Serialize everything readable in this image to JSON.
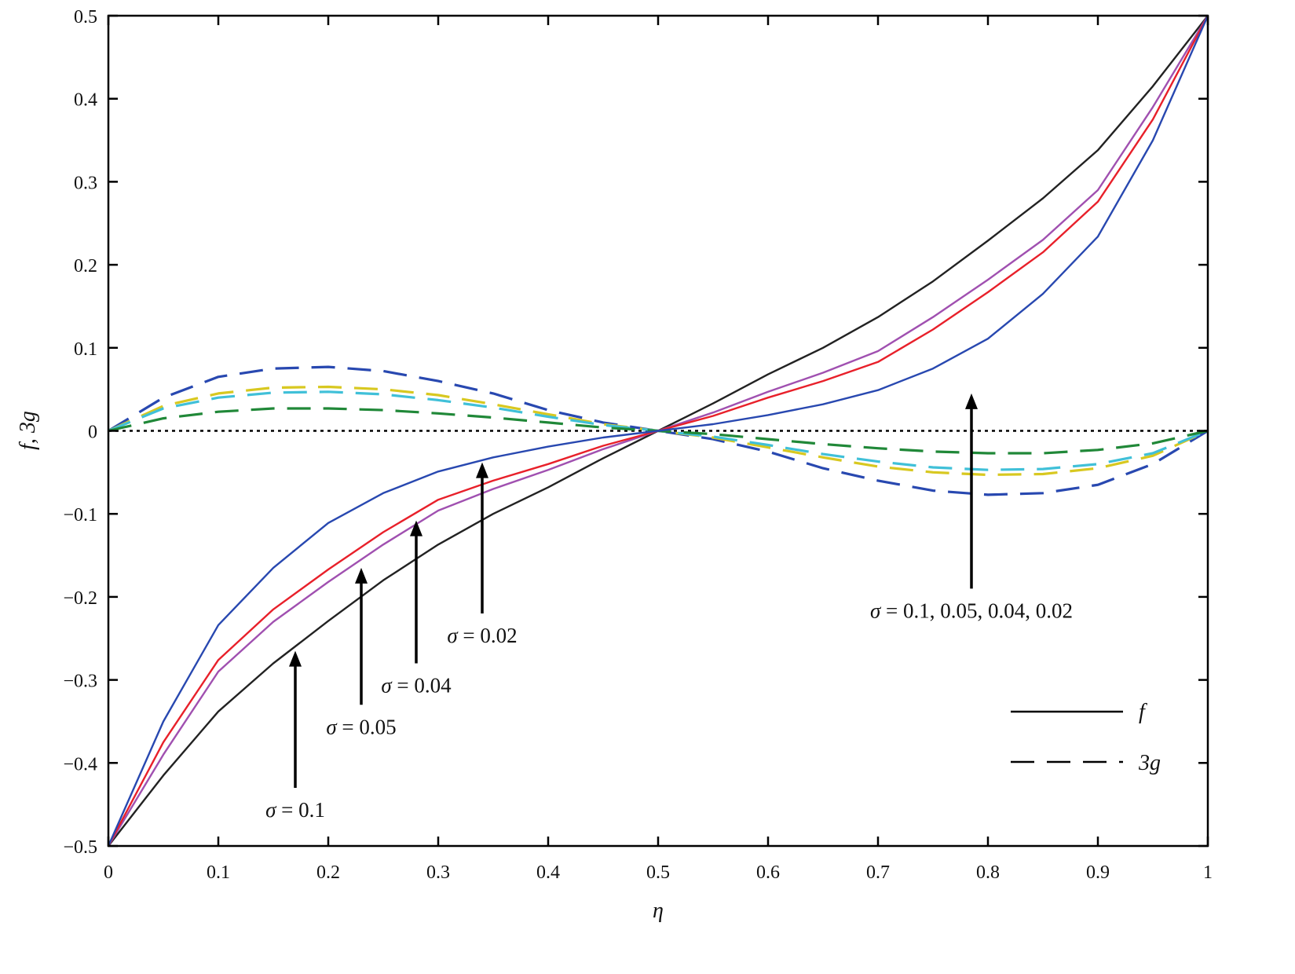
{
  "chart_data": {
    "type": "line",
    "xlabel": "η",
    "ylabel": "f, 3g",
    "xlim": [
      0,
      1
    ],
    "ylim": [
      -0.5,
      0.5
    ],
    "xticks": [
      "0",
      "0.1",
      "0.2",
      "0.3",
      "0.4",
      "0.5",
      "0.6",
      "0.7",
      "0.8",
      "0.9",
      "1"
    ],
    "yticks": [
      "0.5",
      "0.4",
      "0.3",
      "0.2",
      "0.1",
      "0",
      "−0.1",
      "−0.2",
      "−0.3",
      "−0.4",
      "−0.5"
    ],
    "grid": false,
    "x": [
      0,
      0.05,
      0.1,
      0.15,
      0.2,
      0.25,
      0.3,
      0.35,
      0.4,
      0.45,
      0.5,
      0.55,
      0.6,
      0.65,
      0.7,
      0.75,
      0.8,
      0.85,
      0.9,
      0.95,
      1
    ],
    "series": [
      {
        "group": "f",
        "color": "#222222",
        "dash": false,
        "values": [
          -0.5,
          -0.415,
          -0.338,
          -0.28,
          -0.229,
          -0.18,
          -0.137,
          -0.1,
          -0.068,
          -0.033,
          0,
          0.033,
          0.068,
          0.1,
          0.137,
          0.18,
          0.229,
          0.28,
          0.338,
          0.415,
          0.5
        ]
      },
      {
        "group": "f",
        "color": "#a050b0",
        "dash": false,
        "values": [
          -0.5,
          -0.39,
          -0.29,
          -0.23,
          -0.182,
          -0.137,
          -0.096,
          -0.07,
          -0.047,
          -0.022,
          0,
          0.022,
          0.047,
          0.07,
          0.096,
          0.137,
          0.182,
          0.23,
          0.29,
          0.39,
          0.5
        ]
      },
      {
        "group": "f",
        "color": "#e8202a",
        "dash": false,
        "values": [
          -0.5,
          -0.375,
          -0.276,
          -0.215,
          -0.167,
          -0.122,
          -0.083,
          -0.06,
          -0.04,
          -0.018,
          0,
          0.018,
          0.04,
          0.06,
          0.083,
          0.122,
          0.167,
          0.215,
          0.276,
          0.375,
          0.5
        ]
      },
      {
        "group": "f",
        "color": "#2848b0",
        "dash": false,
        "values": [
          -0.5,
          -0.35,
          -0.234,
          -0.165,
          -0.111,
          -0.075,
          -0.049,
          -0.032,
          -0.019,
          -0.008,
          0,
          0.008,
          0.019,
          0.032,
          0.049,
          0.075,
          0.111,
          0.165,
          0.234,
          0.35,
          0.5
        ]
      },
      {
        "group": "3g",
        "color": "#2848b0",
        "dash": true,
        "values": [
          0,
          0.04,
          0.065,
          0.075,
          0.077,
          0.072,
          0.06,
          0.045,
          0.025,
          0.01,
          0,
          -0.01,
          -0.025,
          -0.045,
          -0.06,
          -0.072,
          -0.077,
          -0.075,
          -0.065,
          -0.04,
          0
        ]
      },
      {
        "group": "3g",
        "color": "#d8c820",
        "dash": true,
        "values": [
          0,
          0.03,
          0.045,
          0.052,
          0.053,
          0.05,
          0.043,
          0.032,
          0.02,
          0.008,
          0,
          -0.008,
          -0.02,
          -0.032,
          -0.043,
          -0.05,
          -0.053,
          -0.052,
          -0.045,
          -0.03,
          0
        ]
      },
      {
        "group": "3g",
        "color": "#40c0d8",
        "dash": true,
        "values": [
          0,
          0.027,
          0.04,
          0.046,
          0.047,
          0.044,
          0.037,
          0.028,
          0.017,
          0.007,
          0,
          -0.007,
          -0.017,
          -0.028,
          -0.037,
          -0.044,
          -0.047,
          -0.046,
          -0.04,
          -0.027,
          0
        ]
      },
      {
        "group": "3g",
        "color": "#208838",
        "dash": true,
        "values": [
          0,
          0.015,
          0.023,
          0.027,
          0.027,
          0.025,
          0.021,
          0.016,
          0.01,
          0.004,
          0,
          -0.004,
          -0.01,
          -0.016,
          -0.021,
          -0.025,
          -0.027,
          -0.027,
          -0.023,
          -0.015,
          0
        ]
      }
    ],
    "zero_line": {
      "y": 0,
      "style": "dotted"
    },
    "legend": {
      "placement": "bottom-right",
      "entries": [
        {
          "label": "f",
          "style": "solid"
        },
        {
          "label": "3g",
          "style": "dashed"
        }
      ]
    },
    "annotations": [
      {
        "text": "σ = 0.1",
        "x_from": 0.17,
        "y_from": -0.43,
        "x_to": 0.17,
        "y_to": -0.265
      },
      {
        "text": "σ = 0.05",
        "x_from": 0.23,
        "y_from": -0.33,
        "x_to": 0.23,
        "y_to": -0.165
      },
      {
        "text": "σ = 0.04",
        "x_from": 0.28,
        "y_from": -0.28,
        "x_to": 0.28,
        "y_to": -0.108
      },
      {
        "text": "σ = 0.02",
        "x_from": 0.34,
        "y_from": -0.22,
        "x_to": 0.34,
        "y_to": -0.038
      },
      {
        "text": "σ = 0.1, 0.05, 0.04, 0.02",
        "x_from": 0.785,
        "y_from": -0.19,
        "x_to": 0.785,
        "y_to": 0.045
      }
    ]
  }
}
